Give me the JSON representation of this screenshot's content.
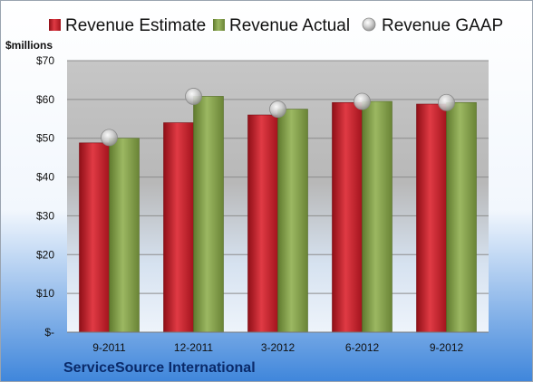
{
  "chart_data": {
    "type": "bar",
    "ylabel": "$millions",
    "ylim": [
      0,
      70
    ],
    "y_ticks": [
      {
        "value": 0,
        "label": "$-"
      },
      {
        "value": 10,
        "label": "$10"
      },
      {
        "value": 20,
        "label": "$20"
      },
      {
        "value": 30,
        "label": "$30"
      },
      {
        "value": 40,
        "label": "$40"
      },
      {
        "value": 50,
        "label": "$50"
      },
      {
        "value": 60,
        "label": "$60"
      },
      {
        "value": 70,
        "label": "$70"
      }
    ],
    "categories": [
      "9-2011",
      "12-2011",
      "3-2012",
      "6-2012",
      "9-2012"
    ],
    "series": [
      {
        "name": "Revenue Estimate",
        "kind": "bar",
        "color": "#cc1f2a",
        "values": [
          48.8,
          54.0,
          56.0,
          59.2,
          58.8
        ]
      },
      {
        "name": "Revenue Actual",
        "kind": "bar",
        "color": "#8aa34e",
        "values": [
          50.0,
          60.8,
          57.5,
          59.5,
          59.2
        ]
      },
      {
        "name": "Revenue GAAP",
        "kind": "marker",
        "color": "#b8b8b8",
        "values": [
          50.2,
          60.8,
          57.5,
          59.5,
          59.2
        ]
      }
    ],
    "legend_position": "top",
    "grid": true,
    "company": "ServiceSource International"
  }
}
